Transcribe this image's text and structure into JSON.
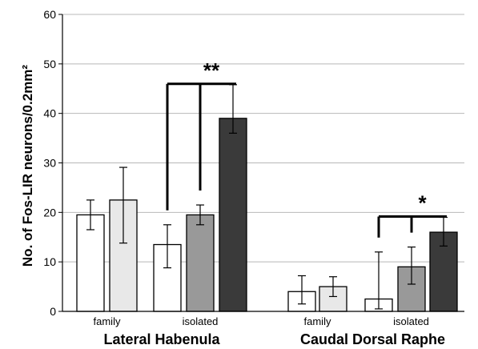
{
  "chart_data": {
    "type": "bar",
    "ylabel": "No. of Fos-LIR neurons/0.2mm²",
    "ylim": [
      0,
      60
    ],
    "yticks": [
      0,
      10,
      20,
      30,
      40,
      50,
      60
    ],
    "grid": true,
    "groups": [
      {
        "name": "Lateral Habenula",
        "subgroups": [
          {
            "label": "family",
            "bars": [
              {
                "value": 19.5,
                "error_low": 16.5,
                "error_high": 22.5,
                "fill": "#ffffff"
              },
              {
                "value": 22.5,
                "error_low": 13.8,
                "error_high": 29.1,
                "fill": "#e8e8e8"
              }
            ]
          },
          {
            "label": "isolated",
            "bars": [
              {
                "value": 13.5,
                "error_low": 8.8,
                "error_high": 17.5,
                "fill": "#ffffff"
              },
              {
                "value": 19.5,
                "error_low": 17.5,
                "error_high": 21.5,
                "fill": "#999999"
              },
              {
                "value": 39.0,
                "error_low": 36.0,
                "error_high": 45.8,
                "fill": "#3a3a3a"
              }
            ]
          }
        ],
        "significance": "**"
      },
      {
        "name": "Caudal Dorsal Raphe",
        "subgroups": [
          {
            "label": "family",
            "bars": [
              {
                "value": 4.0,
                "error_low": 1.5,
                "error_high": 7.2,
                "fill": "#ffffff"
              },
              {
                "value": 5.0,
                "error_low": 3.0,
                "error_high": 7.0,
                "fill": "#e8e8e8"
              }
            ]
          },
          {
            "label": "isolated",
            "bars": [
              {
                "value": 2.5,
                "error_low": 0.5,
                "error_high": 12.0,
                "fill": "#ffffff"
              },
              {
                "value": 9.0,
                "error_low": 5.5,
                "error_high": 13.0,
                "fill": "#999999"
              },
              {
                "value": 16.0,
                "error_low": 13.2,
                "error_high": 19.0,
                "fill": "#3a3a3a"
              }
            ]
          }
        ],
        "significance": "*"
      }
    ]
  }
}
